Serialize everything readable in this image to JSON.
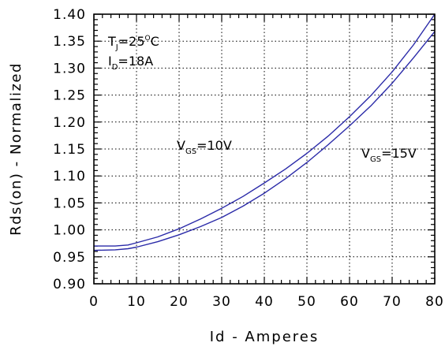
{
  "chart_data": {
    "type": "line",
    "xlabel": "Id - Amperes",
    "ylabel": "Rds(on) - Normalized",
    "xlim": [
      0,
      80
    ],
    "ylim": [
      0.9,
      1.4
    ],
    "x_ticks": [
      0,
      10,
      20,
      30,
      40,
      50,
      60,
      70,
      80
    ],
    "y_ticks": [
      0.9,
      0.95,
      1.0,
      1.05,
      1.1,
      1.15,
      1.2,
      1.25,
      1.3,
      1.35,
      1.4
    ],
    "x_tick_labels": [
      "0",
      "10",
      "20",
      "30",
      "40",
      "50",
      "60",
      "70",
      "80"
    ],
    "y_tick_labels": [
      "0.90",
      "0.95",
      "1.00",
      "1.05",
      "1.10",
      "1.15",
      "1.20",
      "1.25",
      "1.30",
      "1.35",
      "1.40"
    ],
    "grid": true,
    "grid_style": "dotted",
    "series": [
      {
        "name": "VGS=10V",
        "label_v": "V",
        "label_sub": "GS",
        "label_val": "=10V",
        "color": "#2a2aa8",
        "x": [
          0,
          5,
          8,
          10,
          15,
          20,
          25,
          30,
          35,
          40,
          45,
          50,
          55,
          60,
          65,
          70,
          75,
          80
        ],
        "y": [
          0.97,
          0.97,
          0.972,
          0.976,
          0.987,
          1.002,
          1.02,
          1.04,
          1.062,
          1.087,
          1.113,
          1.142,
          1.174,
          1.21,
          1.249,
          1.293,
          1.343,
          1.4
        ]
      },
      {
        "name": "VGS=15V",
        "label_v": "V",
        "label_sub": "GS",
        "label_val": "=15V",
        "color": "#2a2aa8",
        "x": [
          0,
          5,
          8,
          10,
          15,
          20,
          25,
          30,
          35,
          40,
          45,
          50,
          55,
          60,
          65,
          70,
          75,
          80
        ],
        "y": [
          0.962,
          0.963,
          0.965,
          0.968,
          0.978,
          0.991,
          1.006,
          1.023,
          1.044,
          1.068,
          1.095,
          1.125,
          1.158,
          1.193,
          1.23,
          1.272,
          1.319,
          1.368
        ]
      }
    ],
    "annotations": {
      "tj": {
        "main": "T",
        "sub": "J",
        "value": "=25",
        "sup": "O",
        "unit": "C"
      },
      "id": {
        "main": "I",
        "sub": "D",
        "value": "=18A"
      }
    }
  }
}
